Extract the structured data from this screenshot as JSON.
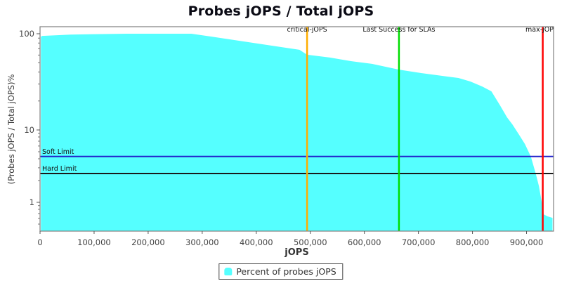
{
  "title": "Probes jOPS / Total jOPS",
  "chart_data": {
    "type": "area",
    "title": "Probes jOPS / Total jOPS",
    "xlabel": "jOPS",
    "ylabel": "(Probes jOPS / Total jOPS)%",
    "x_axis": {
      "min": 0,
      "max": 950000,
      "ticks": [
        0,
        100000,
        200000,
        300000,
        400000,
        500000,
        600000,
        700000,
        800000,
        900000
      ],
      "tick_labels": [
        "0",
        "100,000",
        "200,000",
        "300,000",
        "400,000",
        "500,000",
        "600,000",
        "700,000",
        "800,000",
        "900,000"
      ]
    },
    "y_axis": {
      "scale": "log",
      "min": 0.4,
      "max": 118,
      "ticks": [
        100,
        10,
        1
      ],
      "tick_labels": [
        "100",
        "10",
        "1"
      ],
      "minor_ticks": [
        90,
        80,
        70,
        60,
        50,
        40,
        30,
        20,
        9,
        8,
        7,
        6,
        5,
        4,
        3,
        2,
        0.9,
        0.8,
        0.7,
        0.6,
        0.5
      ]
    },
    "grid": false,
    "series": [
      {
        "name": "Percent of probes jOPS",
        "color": "#55FFFF",
        "points": [
          [
            1500,
            93
          ],
          [
            4000,
            95
          ],
          [
            56000,
            98
          ],
          [
            160000,
            100
          ],
          [
            280000,
            100
          ],
          [
            316000,
            93.5
          ],
          [
            368000,
            84.5
          ],
          [
            420000,
            76.4
          ],
          [
            480000,
            68
          ],
          [
            494000,
            60.5
          ],
          [
            536000,
            56.6
          ],
          [
            575000,
            51.9
          ],
          [
            614000,
            48.6
          ],
          [
            664000,
            42.4
          ],
          [
            705000,
            39
          ],
          [
            744000,
            36.5
          ],
          [
            774000,
            34.7
          ],
          [
            796000,
            31.9
          ],
          [
            818000,
            28.3
          ],
          [
            835000,
            25.2
          ],
          [
            851000,
            18
          ],
          [
            864000,
            13.5
          ],
          [
            874000,
            11.4
          ],
          [
            887000,
            8.4
          ],
          [
            897000,
            6.4
          ],
          [
            908000,
            4.28
          ],
          [
            917000,
            2.5
          ],
          [
            923000,
            1.67
          ],
          [
            927000,
            1.12
          ],
          [
            930000,
            0.86
          ],
          [
            932000,
            0.68
          ],
          [
            939000,
            0.64
          ],
          [
            948000,
            0.61
          ]
        ]
      }
    ],
    "vlines": [
      {
        "label": "critical-jOPS",
        "x": 494000,
        "color": "#FFAE00"
      },
      {
        "label": "Last Success for SLAs",
        "x": 664000,
        "color": "#00DD00"
      },
      {
        "label": "max-jOP",
        "x": 930000,
        "color": "#FF0000"
      }
    ],
    "hlines": [
      {
        "label": "Soft Limit",
        "y": 4.3,
        "color": "#2222CC"
      },
      {
        "label": "Hard Limit",
        "y": 2.5,
        "color": "#1A1A1A"
      }
    ],
    "legend_position": "bottom"
  },
  "legend": {
    "items": [
      {
        "label": "Percent of probes jOPS",
        "color": "#55FFFF"
      }
    ]
  },
  "colors": {
    "plot_border": "#808080",
    "tick_text": "#444444",
    "area_fill": "#55FFFF"
  }
}
